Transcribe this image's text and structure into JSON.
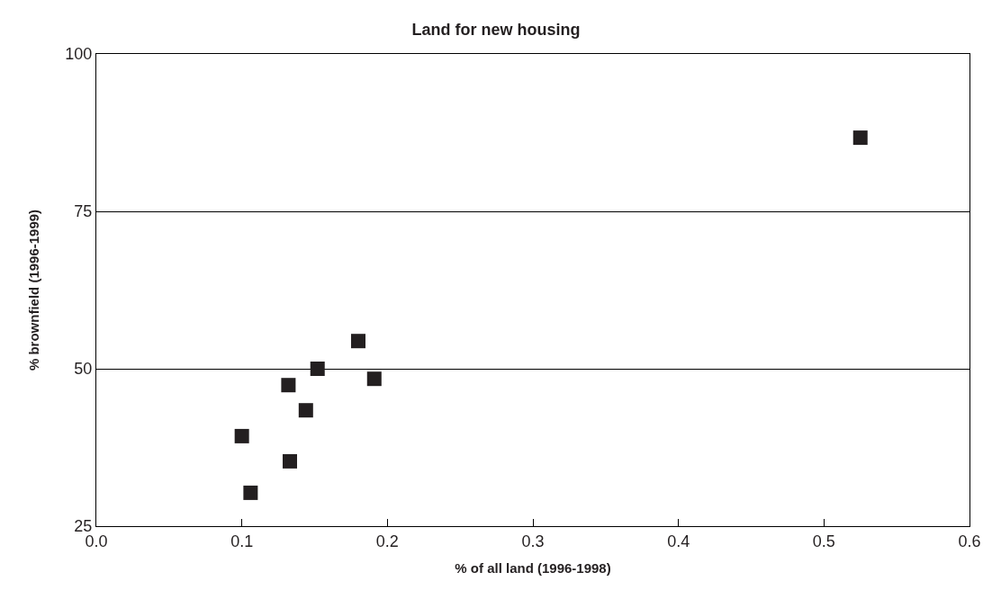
{
  "chart_data": {
    "type": "scatter",
    "title": "Land for new housing",
    "xlabel": "% of all land (1996-1998)",
    "ylabel": "% brownfield (1996-1999)",
    "series": [
      {
        "color": "#231f20",
        "x": [
          0.525,
          0.18,
          0.152,
          0.191,
          0.132,
          0.144,
          0.1,
          0.133,
          0.106
        ],
        "values": [
          86.7,
          54.4,
          50.0,
          48.4,
          47.4,
          43.4,
          39.3,
          35.3,
          30.3
        ]
      }
    ],
    "xlim": [
      0.0,
      0.6
    ],
    "xticks": [
      {
        "value": 0.0,
        "label": "0.0"
      },
      0.1,
      0.2,
      0.3,
      0.4,
      0.5,
      0.6
    ],
    "ylim": [
      25,
      100
    ],
    "yticks": [
      25,
      50,
      75,
      100
    ],
    "grid": "y",
    "marker": "square"
  }
}
